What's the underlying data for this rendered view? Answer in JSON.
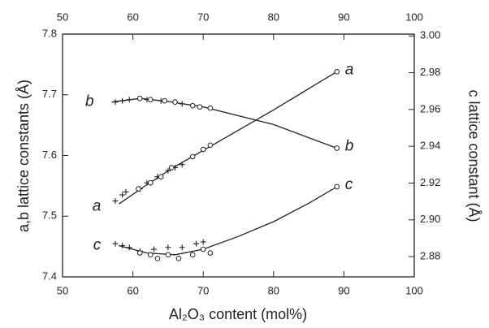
{
  "chart_data": {
    "type": "scatter",
    "x_label": "Al₂O₃ content (mol%)",
    "y_label": "a,b lattice constants (Å)",
    "y2_label": "c lattice constant (Å)",
    "xlim": [
      50,
      100
    ],
    "xticks": [
      50,
      60,
      70,
      80,
      90,
      100
    ],
    "ylim": [
      7.4,
      7.8
    ],
    "yticks": [
      7.4,
      7.5,
      7.6,
      7.7,
      7.8
    ],
    "y2lim": [
      2.869,
      3.001
    ],
    "y2ticks": [
      2.88,
      {
        "value": 2.9,
        "label": "2.90"
      },
      2.92,
      2.94,
      2.96,
      2.98,
      {
        "value": 3.0,
        "label": "3.00"
      }
    ],
    "color": "#222",
    "series": [
      {
        "name": "a",
        "axis": "y",
        "x": [
          57.5,
          58.5,
          59,
          61,
          62,
          63.5,
          65,
          66,
          67,
          60.8,
          62.5,
          64,
          65.5,
          68.5,
          70,
          71,
          89
        ],
        "values": [
          7.525,
          7.535,
          7.54,
          7.545,
          7.555,
          7.565,
          7.575,
          7.58,
          7.585,
          7.545,
          7.555,
          7.565,
          7.58,
          7.598,
          7.61,
          7.617,
          7.738
        ],
        "markers": [
          "+",
          "+",
          "+",
          "+",
          "+",
          "+",
          "+",
          "+",
          "+",
          "o",
          "o",
          "o",
          "o",
          "o",
          "o",
          "o",
          "o"
        ],
        "fit_x": [
          58,
          62,
          66,
          71,
          80,
          89
        ],
        "fit_values": [
          7.52,
          7.552,
          7.582,
          7.615,
          7.675,
          7.738
        ]
      },
      {
        "name": "b",
        "axis": "y",
        "x": [
          57.5,
          58.5,
          59.5,
          62,
          64,
          66,
          67,
          61,
          62.5,
          64.5,
          66,
          68.5,
          69.5,
          71,
          89
        ],
        "values": [
          7.688,
          7.69,
          7.692,
          7.692,
          7.69,
          7.688,
          7.685,
          7.694,
          7.692,
          7.69,
          7.688,
          7.682,
          7.68,
          7.678,
          7.612
        ],
        "markers": [
          "+",
          "+",
          "+",
          "+",
          "+",
          "+",
          "+",
          "o",
          "o",
          "o",
          "o",
          "o",
          "o",
          "o",
          "o"
        ],
        "fit_x": [
          57,
          61,
          65,
          70,
          80,
          89
        ],
        "fit_values": [
          7.688,
          7.694,
          7.689,
          7.68,
          7.651,
          7.612
        ]
      },
      {
        "name": "c",
        "axis": "y2",
        "x": [
          57.5,
          58.5,
          59.5,
          61,
          63,
          65,
          67,
          69,
          70,
          61,
          62.5,
          63.5,
          65,
          66.5,
          68.5,
          70,
          71,
          89
        ],
        "values": [
          2.887,
          2.886,
          2.885,
          2.883,
          2.884,
          2.885,
          2.885,
          2.887,
          2.888,
          2.882,
          2.881,
          2.879,
          2.881,
          2.879,
          2.881,
          2.884,
          2.882,
          2.918
        ],
        "markers": [
          "+",
          "+",
          "+",
          "+",
          "+",
          "+",
          "+",
          "+",
          "+",
          "o",
          "o",
          "o",
          "o",
          "o",
          "o",
          "o",
          "o",
          "o"
        ],
        "fit_x": [
          58,
          62,
          66,
          70,
          75,
          80,
          85,
          89
        ],
        "fit_values": [
          2.886,
          2.882,
          2.881,
          2.884,
          2.891,
          2.899,
          2.909,
          2.918
        ]
      }
    ]
  }
}
